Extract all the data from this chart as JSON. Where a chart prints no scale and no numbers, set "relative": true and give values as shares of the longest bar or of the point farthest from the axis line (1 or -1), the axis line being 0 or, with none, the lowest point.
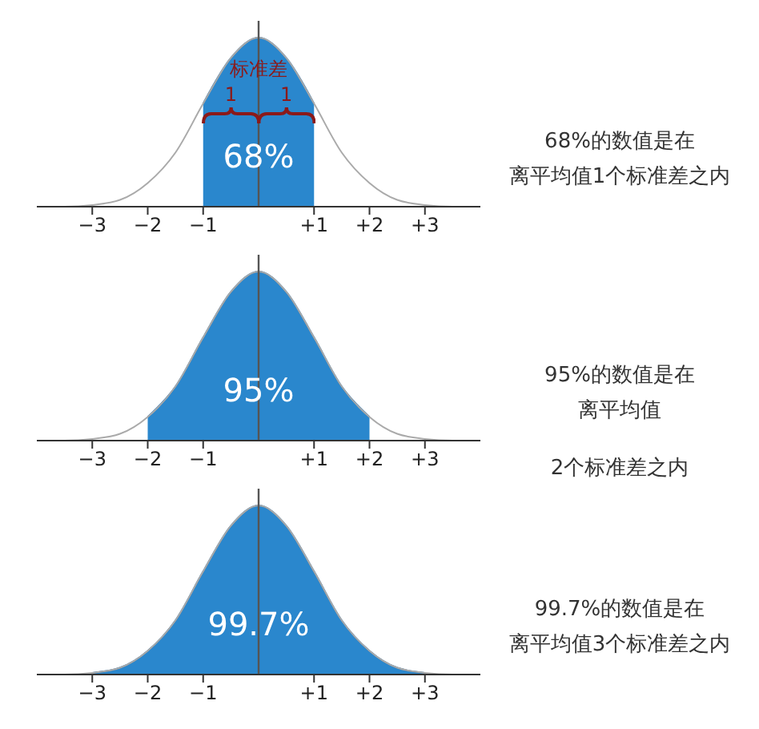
{
  "chart_data": [
    {
      "type": "line",
      "relative": true,
      "xlim": [
        -4,
        4
      ],
      "xticks": [
        {
          "value": -3,
          "label": "−3"
        },
        {
          "value": -2,
          "label": "−2"
        },
        {
          "value": -1,
          "label": "−1"
        },
        {
          "value": 1,
          "label": "+1"
        },
        {
          "value": 2,
          "label": "+2"
        },
        {
          "value": 3,
          "label": "+3"
        }
      ],
      "series": [
        {
          "color": "#aaaaaa",
          "x": [
            -4,
            -3.5,
            -3,
            -2.5,
            -2,
            -1.5,
            -1,
            -0.5,
            0,
            0.5,
            1,
            1.5,
            2,
            2.5,
            3,
            3.5,
            4
          ],
          "values": [
            0,
            0,
            0.01,
            0.04,
            0.14,
            0.32,
            0.61,
            0.88,
            1,
            0.88,
            0.61,
            0.32,
            0.14,
            0.04,
            0.01,
            0,
            0
          ]
        },
        {
          "type": "area",
          "color": "#2a87cd",
          "x": [
            -1,
            -0.5,
            0,
            0.5,
            1
          ],
          "values": [
            0.61,
            0.88,
            1,
            0.88,
            0.61
          ]
        }
      ],
      "ref_lines": [
        {
          "axis": "x",
          "value": 0,
          "color": "#555555",
          "label": "标准差"
        }
      ],
      "annotations": [
        "68%",
        "1",
        "1",
        "68%的数值是在",
        "离平均值1个标准差之内"
      ]
    },
    {
      "type": "line",
      "relative": true,
      "xlim": [
        -4,
        4
      ],
      "xticks": [
        {
          "value": -3,
          "label": "−3"
        },
        {
          "value": -2,
          "label": "−2"
        },
        {
          "value": -1,
          "label": "−1"
        },
        {
          "value": 1,
          "label": "+1"
        },
        {
          "value": 2,
          "label": "+2"
        },
        {
          "value": 3,
          "label": "+3"
        }
      ],
      "series": [
        {
          "color": "#aaaaaa",
          "x": [
            -4,
            -3.5,
            -3,
            -2.5,
            -2,
            -1.5,
            -1,
            -0.5,
            0,
            0.5,
            1,
            1.5,
            2,
            2.5,
            3,
            3.5,
            4
          ],
          "values": [
            0,
            0,
            0.01,
            0.04,
            0.14,
            0.32,
            0.61,
            0.88,
            1,
            0.88,
            0.61,
            0.32,
            0.14,
            0.04,
            0.01,
            0,
            0
          ]
        },
        {
          "type": "area",
          "color": "#2a87cd",
          "x": [
            -2,
            -1.5,
            -1,
            -0.5,
            0,
            0.5,
            1,
            1.5,
            2
          ],
          "values": [
            0.14,
            0.32,
            0.61,
            0.88,
            1,
            0.88,
            0.61,
            0.32,
            0.14
          ]
        }
      ],
      "ref_lines": [
        {
          "axis": "x",
          "value": 0,
          "color": "#555555"
        }
      ],
      "annotations": [
        "95%",
        "95%的数值是在",
        "离平均值",
        "2个标准差之内"
      ]
    },
    {
      "type": "line",
      "relative": true,
      "xlim": [
        -4,
        4
      ],
      "xticks": [
        {
          "value": -3,
          "label": "−3"
        },
        {
          "value": -2,
          "label": "−2"
        },
        {
          "value": -1,
          "label": "−1"
        },
        {
          "value": 1,
          "label": "+1"
        },
        {
          "value": 2,
          "label": "+2"
        },
        {
          "value": 3,
          "label": "+3"
        }
      ],
      "series": [
        {
          "color": "#aaaaaa",
          "x": [
            -4,
            -3.5,
            -3,
            -2.5,
            -2,
            -1.5,
            -1,
            -0.5,
            0,
            0.5,
            1,
            1.5,
            2,
            2.5,
            3,
            3.5,
            4
          ],
          "values": [
            0,
            0,
            0.01,
            0.04,
            0.14,
            0.32,
            0.61,
            0.88,
            1,
            0.88,
            0.61,
            0.32,
            0.14,
            0.04,
            0.01,
            0,
            0
          ]
        },
        {
          "type": "area",
          "color": "#2a87cd",
          "x": [
            -3,
            -2.5,
            -2,
            -1.5,
            -1,
            -0.5,
            0,
            0.5,
            1,
            1.5,
            2,
            2.5,
            3
          ],
          "values": [
            0.01,
            0.04,
            0.14,
            0.32,
            0.61,
            0.88,
            1,
            0.88,
            0.61,
            0.32,
            0.14,
            0.04,
            0.01
          ]
        }
      ],
      "ref_lines": [
        {
          "axis": "x",
          "value": 0,
          "color": "#555555"
        }
      ],
      "annotations": [
        "99.7%",
        "99.7%的数值是在",
        "离平均值3个标准差之内"
      ]
    }
  ]
}
